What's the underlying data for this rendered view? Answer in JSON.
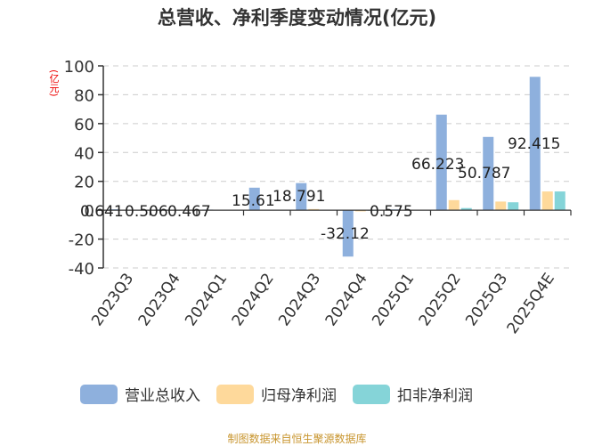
{
  "title": "总营收、净利季度变动情况(亿元)",
  "unit_label": "(亿元)",
  "source": "制图数据来自恒生聚源数据库",
  "legend": [
    {
      "label": "营业总收入",
      "color": "#8eb0dd"
    },
    {
      "label": "归母净利润",
      "color": "#fed99b"
    },
    {
      "label": "扣非净利润",
      "color": "#85d4d8"
    }
  ],
  "chart_data": {
    "type": "bar",
    "title": "总营收、净利季度变动情况(亿元)",
    "xlabel": "",
    "ylabel": "(亿元)",
    "ylim": [
      -40,
      100
    ],
    "yticks": [
      100,
      80,
      60,
      40,
      20,
      0,
      -20,
      -40
    ],
    "grid": true,
    "legend_position": "bottom",
    "categories": [
      "2023Q3",
      "2023Q4",
      "2024Q1",
      "2024Q2",
      "2024Q3",
      "2024Q4",
      "2025Q1",
      "2025Q2",
      "2025Q3",
      "2025Q4E"
    ],
    "series": [
      {
        "name": "营业总收入",
        "color": "#8eb0dd",
        "values": [
          0.641,
          0.506,
          0.467,
          15.61,
          18.791,
          -32.12,
          0.575,
          66.223,
          50.787,
          92.415
        ]
      },
      {
        "name": "归母净利润",
        "color": "#fed99b",
        "values": [
          0.1,
          0.1,
          0.1,
          0.2,
          0.8,
          -0.8,
          0.1,
          7.0,
          6.0,
          13.0
        ]
      },
      {
        "name": "扣非净利润",
        "color": "#85d4d8",
        "values": [
          0.1,
          0.1,
          0.1,
          0.2,
          0.3,
          -0.3,
          0.1,
          1.5,
          5.5,
          13.0
        ]
      }
    ],
    "data_labels": [
      "0.641",
      "0.506",
      "0.467",
      "15.61",
      "18.791",
      "-32.12",
      "0.575",
      "66.223",
      "50.787",
      "92.415"
    ]
  }
}
